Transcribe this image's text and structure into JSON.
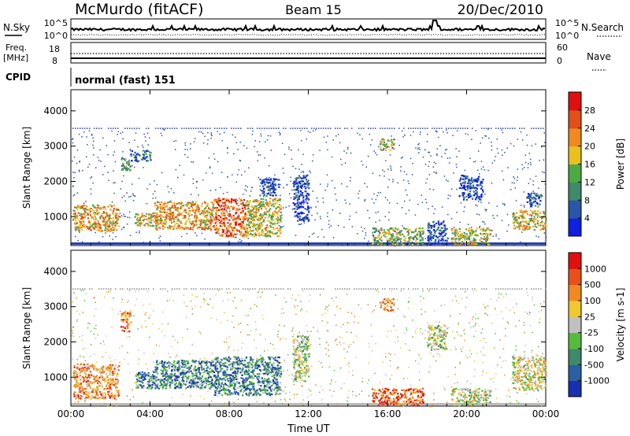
{
  "header": {
    "station": "McMurdo (fitACF)",
    "beam": "Beam 15",
    "date": "20/Dec/2010"
  },
  "noise_panel": {
    "left_label": "N.Sky",
    "right_label": "N.Search",
    "left_ticks": [
      "10^5",
      "10^0"
    ],
    "right_ticks": [
      "10^5",
      "10^0"
    ]
  },
  "freq_panel": {
    "left_label_1": "Freq.",
    "left_label_2": "[MHz]",
    "right_label": "Nave",
    "left_ticks": [
      "18",
      "8"
    ],
    "right_ticks": [
      "60",
      "0"
    ]
  },
  "cpid_panel": {
    "label": "CPID",
    "value": "normal (fast) 151"
  },
  "chart_data": [
    {
      "type": "heatmap",
      "title": "",
      "xlabel": "Time UT",
      "ylabel": "Slant Range [km]",
      "x_ticks": [
        "00:00",
        "04:00",
        "08:00",
        "12:00",
        "16:00",
        "20:00",
        "00:00"
      ],
      "y_ticks": [
        "1000",
        "2000",
        "3000",
        "4000"
      ],
      "xlim_hours": [
        0,
        24
      ],
      "ylim_km": [
        180,
        4600
      ],
      "colorbar": {
        "label": "Power [dB]",
        "ticks": [
          "4",
          "8",
          "12",
          "16",
          "20",
          "24",
          "28"
        ],
        "colors": [
          "#1020e0",
          "#2a55a8",
          "#3f8a6a",
          "#4caa40",
          "#e8c020",
          "#f08a20",
          "#e05018",
          "#e01010"
        ]
      },
      "scatter_regions": [
        {
          "t0": 0.1,
          "t1": 2.4,
          "r0": 600,
          "r1": 1350,
          "level": 0.65
        },
        {
          "t0": 2.5,
          "t1": 3.0,
          "r0": 2300,
          "r1": 2700,
          "level": 0.4
        },
        {
          "t0": 3.0,
          "t1": 4.0,
          "r0": 2600,
          "r1": 2900,
          "level": 0.2
        },
        {
          "t0": 3.2,
          "t1": 4.2,
          "r0": 750,
          "r1": 1150,
          "level": 0.55
        },
        {
          "t0": 4.2,
          "t1": 7.2,
          "r0": 650,
          "r1": 1450,
          "level": 0.65
        },
        {
          "t0": 7.2,
          "t1": 8.8,
          "r0": 450,
          "r1": 1550,
          "level": 0.8
        },
        {
          "t0": 8.8,
          "t1": 10.6,
          "r0": 450,
          "r1": 1550,
          "level": 0.55
        },
        {
          "t0": 9.5,
          "t1": 10.5,
          "r0": 1600,
          "r1": 2100,
          "level": 0.15
        },
        {
          "t0": 11.2,
          "t1": 12.0,
          "r0": 900,
          "r1": 2200,
          "level": 0.1
        },
        {
          "t0": 15.2,
          "t1": 17.8,
          "r0": 220,
          "r1": 700,
          "level": 0.45
        },
        {
          "t0": 15.6,
          "t1": 16.3,
          "r0": 2900,
          "r1": 3250,
          "level": 0.45
        },
        {
          "t0": 18.0,
          "t1": 19.0,
          "r0": 220,
          "r1": 900,
          "level": 0.15
        },
        {
          "t0": 19.2,
          "t1": 21.2,
          "r0": 220,
          "r1": 700,
          "level": 0.5
        },
        {
          "t0": 19.6,
          "t1": 20.8,
          "r0": 1500,
          "r1": 2200,
          "level": 0.15
        },
        {
          "t0": 22.3,
          "t1": 24.0,
          "r0": 650,
          "r1": 1200,
          "level": 0.55
        },
        {
          "t0": 23.0,
          "t1": 23.8,
          "r0": 1300,
          "r1": 1700,
          "level": 0.2
        }
      ]
    },
    {
      "type": "heatmap",
      "title": "",
      "xlabel": "Time UT",
      "ylabel": "Slant Range [km]",
      "x_ticks": [
        "00:00",
        "04:00",
        "08:00",
        "12:00",
        "16:00",
        "20:00",
        "00:00"
      ],
      "y_ticks": [
        "1000",
        "2000",
        "3000",
        "4000"
      ],
      "xlim_hours": [
        0,
        24
      ],
      "ylim_km": [
        180,
        4600
      ],
      "colorbar": {
        "label": "Velocity [m s-1]",
        "ticks": [
          "1000",
          "500",
          "100",
          "25",
          "-25",
          "-100",
          "-500",
          "-1000"
        ],
        "colors": [
          "#1830b0",
          "#2a60a0",
          "#3f8a6a",
          "#55bb3a",
          "#c0c0c0",
          "#f0c830",
          "#f08a20",
          "#e85018",
          "#e01010"
        ]
      },
      "scatter_regions": [
        {
          "t0": 0.1,
          "t1": 2.4,
          "r0": 400,
          "r1": 1400,
          "level": 0.7
        },
        {
          "t0": 2.5,
          "t1": 3.0,
          "r0": 2300,
          "r1": 2900,
          "level": 0.75
        },
        {
          "t0": 3.2,
          "t1": 4.2,
          "r0": 700,
          "r1": 1200,
          "level": 0.25
        },
        {
          "t0": 4.2,
          "t1": 7.2,
          "r0": 700,
          "r1": 1500,
          "level": 0.25
        },
        {
          "t0": 7.2,
          "t1": 10.6,
          "r0": 500,
          "r1": 1600,
          "level": 0.25
        },
        {
          "t0": 11.2,
          "t1": 12.0,
          "r0": 900,
          "r1": 2200,
          "level": 0.45
        },
        {
          "t0": 15.2,
          "t1": 17.8,
          "r0": 220,
          "r1": 700,
          "level": 0.85
        },
        {
          "t0": 15.6,
          "t1": 16.3,
          "r0": 2900,
          "r1": 3250,
          "level": 0.7
        },
        {
          "t0": 18.0,
          "t1": 19.0,
          "r0": 1800,
          "r1": 2500,
          "level": 0.5
        },
        {
          "t0": 19.2,
          "t1": 21.2,
          "r0": 220,
          "r1": 700,
          "level": 0.5
        },
        {
          "t0": 22.3,
          "t1": 24.0,
          "r0": 650,
          "r1": 1600,
          "level": 0.55
        }
      ]
    }
  ]
}
